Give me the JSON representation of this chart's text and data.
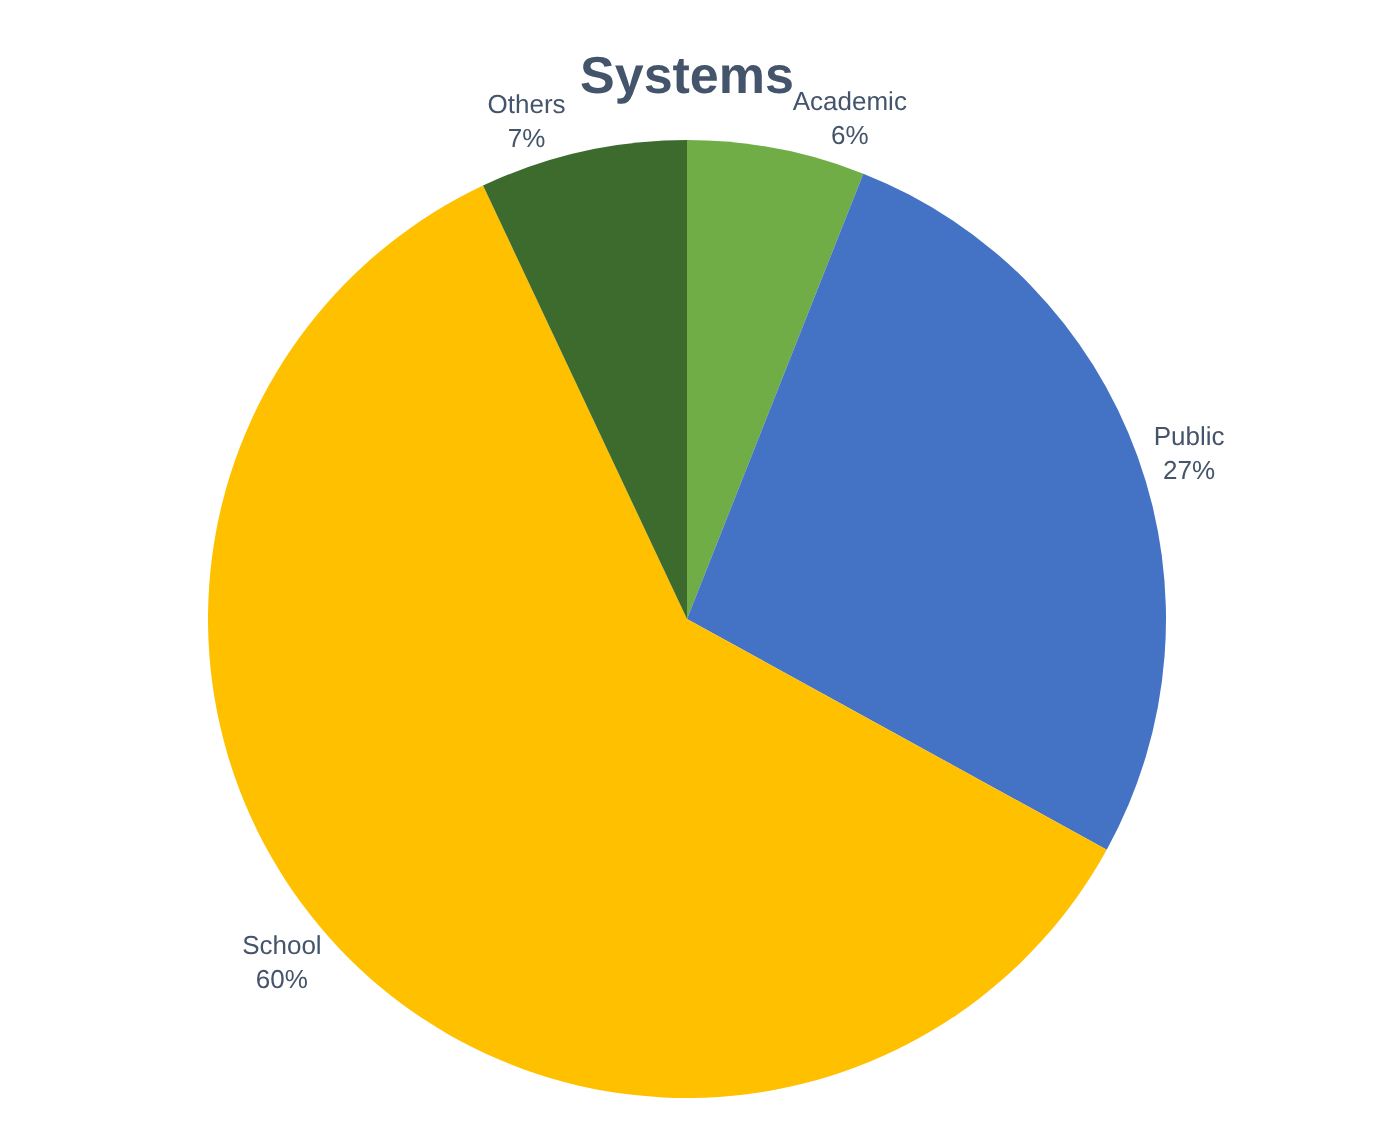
{
  "chart_data": {
    "type": "pie",
    "title": "Systems",
    "categories": [
      "Academic",
      "Public",
      "School",
      "Others"
    ],
    "values": [
      6,
      27,
      60,
      7
    ],
    "value_labels": [
      "6%",
      "27%",
      "60%",
      "7%"
    ],
    "colors": [
      "#70ad47",
      "#4472c4",
      "#ffc000",
      "#3d6b2e"
    ],
    "legend": false
  }
}
